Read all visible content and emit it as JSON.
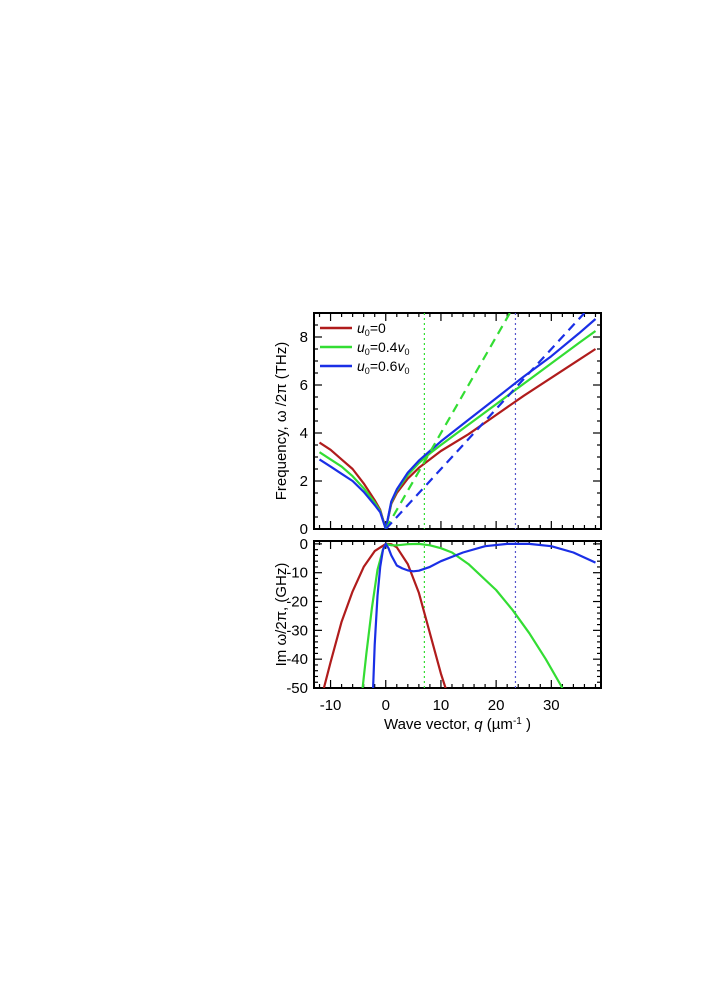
{
  "chart_data": [
    {
      "type": "line",
      "panel": "top",
      "ylabel": "Frequency, ω /2π (THz)",
      "xlim": [
        -13,
        39
      ],
      "ylim": [
        0,
        9
      ],
      "yticks": [
        0,
        2,
        4,
        6,
        8
      ],
      "legend_position": "top-left",
      "legend": [
        {
          "label_main": "u",
          "label_sub": "0",
          "label_rest": "=0",
          "color": "#b01c1c"
        },
        {
          "label_main": "u",
          "label_sub": "0",
          "label_rest": "=0.4v",
          "label_sub2": "0",
          "color": "#33dd33"
        },
        {
          "label_main": "u",
          "label_sub": "0",
          "label_rest": "=0.6v",
          "label_sub2": "0",
          "color": "#1a2fe6"
        }
      ],
      "series": [
        {
          "name": "u0=0",
          "color": "#b01c1c",
          "style": "solid",
          "x": [
            -12,
            -10,
            -8,
            -6,
            -4,
            -2,
            -1,
            0,
            1,
            2,
            4,
            6,
            8,
            10,
            15,
            20,
            25,
            30,
            35,
            38
          ],
          "y": [
            3.6,
            3.3,
            2.9,
            2.5,
            1.9,
            1.2,
            0.8,
            0,
            1.05,
            1.5,
            2.1,
            2.55,
            2.9,
            3.25,
            3.95,
            4.75,
            5.55,
            6.3,
            7.05,
            7.5
          ]
        },
        {
          "name": "u0=0.4v0",
          "color": "#33dd33",
          "style": "solid",
          "x": [
            -12,
            -10,
            -8,
            -6,
            -4,
            -2,
            -1,
            0,
            1,
            2,
            4,
            6,
            8,
            10,
            15,
            20,
            25,
            30,
            35,
            38
          ],
          "y": [
            3.2,
            2.9,
            2.6,
            2.2,
            1.7,
            1.1,
            0.75,
            0,
            1.1,
            1.6,
            2.25,
            2.75,
            3.15,
            3.5,
            4.35,
            5.2,
            6.05,
            6.9,
            7.75,
            8.25
          ]
        },
        {
          "name": "u0=0.6v0",
          "color": "#1a2fe6",
          "style": "solid",
          "x": [
            -12,
            -10,
            -8,
            -6,
            -4,
            -2,
            -1,
            0,
            1,
            2,
            4,
            6,
            8,
            10,
            15,
            20,
            25,
            30,
            35,
            38
          ],
          "y": [
            2.9,
            2.6,
            2.3,
            2.0,
            1.55,
            1.0,
            0.7,
            0,
            1.15,
            1.65,
            2.35,
            2.85,
            3.25,
            3.65,
            4.55,
            5.45,
            6.35,
            7.2,
            8.15,
            8.75
          ]
        },
        {
          "color": "#33dd33",
          "style": "dashed",
          "x": [
            0,
            22.5
          ],
          "y": [
            0,
            9
          ]
        },
        {
          "color": "#1a2fe6",
          "style": "dashed",
          "x": [
            0,
            36
          ],
          "y": [
            0,
            9
          ]
        }
      ],
      "vlines": [
        {
          "x": 7,
          "color": "#33dd33",
          "style": "dotted"
        },
        {
          "x": 23.5,
          "color": "#5555cc",
          "style": "dotted"
        }
      ]
    },
    {
      "type": "line",
      "panel": "bottom",
      "xlabel_main": "Wave vector, ",
      "xlabel_var": "q",
      "xlabel_unit_open": " (µm",
      "xlabel_unit_exp": "-1",
      "xlabel_unit_close": " )",
      "ylabel": "Im ω/2π, (GHz)",
      "xlim": [
        -13,
        39
      ],
      "ylim": [
        -50,
        1
      ],
      "xticks": [
        -10,
        0,
        10,
        20,
        30
      ],
      "yticks": [
        0,
        -10,
        -20,
        -30,
        -40,
        -50
      ],
      "series": [
        {
          "name": "u0=0",
          "color": "#b01c1c",
          "style": "solid",
          "x": [
            -11.2,
            -10,
            -8,
            -6,
            -4,
            -2,
            0,
            1,
            2,
            4,
            6,
            8,
            10,
            11
          ],
          "y": [
            -50,
            -41,
            -27,
            -16.5,
            -8,
            -2.5,
            0,
            -0.1,
            -1.2,
            -7,
            -17,
            -31,
            -45,
            -51
          ]
        },
        {
          "name": "u0=0.4v0",
          "color": "#33dd33",
          "style": "solid",
          "x": [
            -4.2,
            -3.5,
            -2.5,
            -1.5,
            -0.5,
            0,
            1,
            2,
            4,
            6,
            8,
            10,
            12,
            15,
            20,
            23,
            26,
            29,
            32
          ],
          "y": [
            -50,
            -38,
            -22,
            -9,
            -2,
            0,
            -0.5,
            -0.5,
            -0.1,
            0,
            -0.5,
            -1.5,
            -3,
            -7,
            -16,
            -23,
            -31,
            -40,
            -50
          ]
        },
        {
          "name": "u0=0.6v0",
          "color": "#1a2fe6",
          "style": "solid",
          "x": [
            -2.3,
            -2.0,
            -1.5,
            -1.0,
            -0.5,
            0,
            0.5,
            1,
            2,
            3,
            4,
            5,
            6,
            8,
            10,
            14,
            18,
            22,
            26,
            30,
            34,
            38
          ],
          "y": [
            -50,
            -35,
            -18,
            -8,
            -2,
            0,
            -1.5,
            -4,
            -7.5,
            -8.5,
            -9.2,
            -9.5,
            -9.3,
            -8,
            -6,
            -3,
            -0.8,
            0,
            0,
            -0.8,
            -3,
            -6.5
          ]
        }
      ],
      "vlines": [
        {
          "x": 7,
          "color": "#33dd33",
          "style": "dotted"
        },
        {
          "x": 23.5,
          "color": "#5555cc",
          "style": "dotted"
        }
      ]
    }
  ]
}
